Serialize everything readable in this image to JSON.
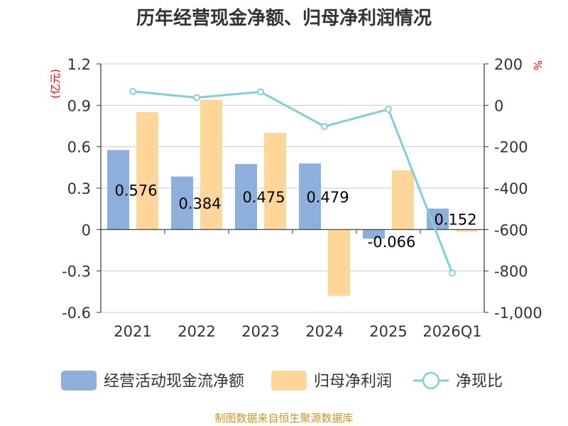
{
  "chart_data": {
    "type": "bar",
    "title": "历年经营现金净额、归母净利润情况",
    "categories": [
      "2021",
      "2022",
      "2023",
      "2024",
      "2025",
      "2026Q1"
    ],
    "series": [
      {
        "name": "经营活动现金流净额",
        "axis": "left",
        "kind": "bar",
        "color": "#8eaedc",
        "values": [
          0.576,
          0.384,
          0.475,
          0.479,
          -0.066,
          0.152
        ],
        "labels": [
          "0.576",
          "0.384",
          "0.475",
          "0.479",
          "-0.066",
          "0.152"
        ]
      },
      {
        "name": "归母净利润",
        "axis": "left",
        "kind": "bar",
        "color": "#ffd699",
        "values": [
          0.85,
          0.94,
          0.7,
          -0.48,
          0.43,
          -0.015
        ]
      },
      {
        "name": "净现比",
        "axis": "right",
        "kind": "line",
        "color": "#7fd0d6",
        "values": [
          67,
          37,
          65,
          -102,
          -19,
          -810
        ]
      }
    ],
    "left_axis": {
      "label": "(亿元)",
      "ylim": [
        -0.6,
        1.2
      ],
      "ticks": [
        1.2,
        0.9,
        0.6,
        0.3,
        0,
        -0.3,
        -0.6
      ],
      "tick_labels": [
        "1.2",
        "0.9",
        "0.6",
        "0.3",
        "0",
        "-0.3",
        "-0.6"
      ]
    },
    "right_axis": {
      "label": "%",
      "ylim": [
        -1000,
        200
      ],
      "ticks": [
        200,
        0,
        -200,
        -400,
        -600,
        -800,
        -1000
      ],
      "tick_labels": [
        "200",
        "0",
        "-200",
        "-400",
        "-600",
        "-800",
        "-1,000"
      ]
    },
    "grid": true,
    "legend_position": "bottom"
  },
  "source": "制图数据来自恒生聚源数据库",
  "colors": {
    "unit_label": "#ff0000",
    "source_text": "#c8962a",
    "axis": "#333333",
    "grid": "#cccccc"
  }
}
